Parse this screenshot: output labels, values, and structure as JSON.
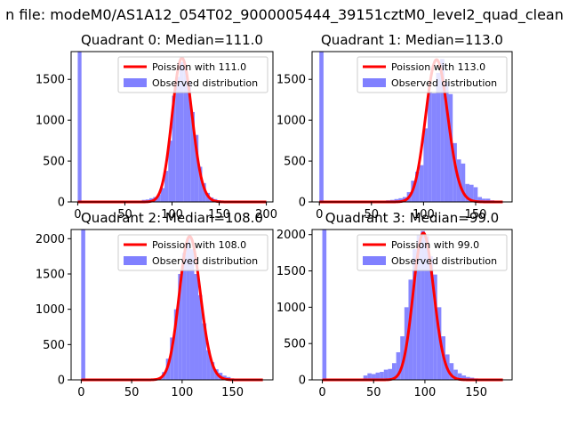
{
  "figure": {
    "suptitle": "n file: modeM0/AS1A12_054T02_9000005444_39151cztM0_level2_quad_clean"
  },
  "colors": {
    "histogram": "#8080ff",
    "poisson": "#ff0000"
  },
  "chart_data": [
    {
      "type": "bar",
      "title": "Quadrant 0: Median=111.0",
      "xlabel": "",
      "ylabel": "",
      "xlim": [
        -7,
        207
      ],
      "ylim": [
        0,
        1840
      ],
      "xticks": [
        0,
        50,
        100,
        150,
        200
      ],
      "yticks": [
        0,
        500,
        1000,
        1500
      ],
      "bin_width": 4,
      "bins_x": [
        0,
        4,
        8,
        12,
        16,
        20,
        24,
        28,
        32,
        36,
        40,
        44,
        48,
        52,
        56,
        60,
        64,
        68,
        72,
        76,
        80,
        84,
        88,
        92,
        96,
        100,
        104,
        108,
        112,
        116,
        120,
        124,
        128,
        132,
        136,
        140,
        144,
        148,
        152,
        156,
        160,
        164,
        168,
        172,
        176,
        180,
        184,
        188,
        192,
        196
      ],
      "bins_y": [
        1840,
        0,
        0,
        0,
        0,
        0,
        0,
        0,
        0,
        0,
        0,
        0,
        0,
        0,
        5,
        10,
        15,
        25,
        30,
        45,
        60,
        90,
        170,
        380,
        750,
        1300,
        1530,
        1710,
        1650,
        1480,
        1100,
        820,
        430,
        230,
        110,
        55,
        35,
        20,
        12,
        8,
        5,
        3,
        2,
        1,
        1,
        0,
        0,
        0,
        0,
        0
      ],
      "series": [
        {
          "name": "Observed distribution",
          "kind": "histogram"
        },
        {
          "name": "Poission with 111.0",
          "kind": "line",
          "mean": 111.0,
          "peak": 1760,
          "x_range": [
            0,
            200
          ]
        }
      ],
      "legend": {
        "position": "top-right",
        "entries": [
          "Poission with 111.0",
          "Observed distribution"
        ]
      }
    },
    {
      "type": "bar",
      "title": "Quadrant 1: Median=113.0",
      "xlabel": "",
      "ylabel": "",
      "xlim": [
        -7,
        185
      ],
      "ylim": [
        0,
        1840
      ],
      "xticks": [
        0,
        50,
        100,
        150
      ],
      "yticks": [
        0,
        500,
        1000,
        1500
      ],
      "bin_width": 4,
      "bins_x": [
        0,
        4,
        8,
        12,
        16,
        20,
        24,
        28,
        32,
        36,
        40,
        44,
        48,
        52,
        56,
        60,
        64,
        68,
        72,
        76,
        80,
        84,
        88,
        92,
        96,
        100,
        104,
        108,
        112,
        116,
        120,
        124,
        128,
        132,
        136,
        140,
        144,
        148,
        152,
        156,
        160,
        164,
        168,
        172,
        176
      ],
      "bins_y": [
        1840,
        0,
        0,
        0,
        0,
        0,
        0,
        0,
        0,
        0,
        0,
        0,
        0,
        0,
        0,
        0,
        20,
        25,
        35,
        45,
        60,
        120,
        260,
        370,
        450,
        900,
        1350,
        1330,
        1580,
        1750,
        1470,
        1320,
        720,
        520,
        470,
        220,
        210,
        180,
        60,
        40,
        40,
        20,
        10,
        5,
        3
      ],
      "series": [
        {
          "name": "Observed distribution",
          "kind": "histogram"
        },
        {
          "name": "Poission with 113.0",
          "kind": "line",
          "mean": 113.0,
          "peak": 1740,
          "x_range": [
            0,
            176
          ]
        }
      ],
      "legend": {
        "position": "top-right",
        "entries": [
          "Poission with 113.0",
          "Observed distribution"
        ]
      }
    },
    {
      "type": "bar",
      "title": "Quadrant 2: Median=108.0",
      "xlabel": "",
      "ylabel": "",
      "xlim": [
        -10,
        190
      ],
      "ylim": [
        0,
        2130
      ],
      "xticks": [
        0,
        50,
        100,
        150
      ],
      "yticks": [
        0,
        500,
        1000,
        1500,
        2000
      ],
      "bin_width": 4,
      "bins_x": [
        0,
        4,
        8,
        12,
        16,
        20,
        24,
        28,
        32,
        36,
        40,
        44,
        48,
        52,
        56,
        60,
        64,
        68,
        72,
        76,
        80,
        84,
        88,
        92,
        96,
        100,
        104,
        108,
        112,
        116,
        120,
        124,
        128,
        132,
        136,
        140,
        144,
        148,
        152,
        156,
        160,
        164,
        168,
        172,
        176,
        180
      ],
      "bins_y": [
        2130,
        0,
        0,
        0,
        0,
        0,
        0,
        0,
        0,
        0,
        0,
        0,
        0,
        0,
        0,
        0,
        5,
        10,
        15,
        30,
        110,
        300,
        600,
        1000,
        1500,
        1800,
        2000,
        1850,
        1500,
        1200,
        800,
        420,
        250,
        150,
        100,
        60,
        40,
        20,
        10,
        5,
        3,
        2,
        1,
        0,
        0,
        0
      ],
      "series": [
        {
          "name": "Observed distribution",
          "kind": "histogram"
        },
        {
          "name": "Poission with 108.0",
          "kind": "line",
          "mean": 108.0,
          "peak": 2030,
          "x_range": [
            0,
            180
          ]
        }
      ],
      "legend": {
        "position": "top-right",
        "entries": [
          "Poission with 108.0",
          "Observed distribution"
        ]
      }
    },
    {
      "type": "bar",
      "title": "Quadrant 3: Median=99.0",
      "xlabel": "",
      "ylabel": "",
      "xlim": [
        -10,
        185
      ],
      "ylim": [
        0,
        2070
      ],
      "xticks": [
        0,
        50,
        100,
        150
      ],
      "yticks": [
        0,
        500,
        1000,
        1500,
        2000
      ],
      "bin_width": 4,
      "bins_x": [
        0,
        4,
        8,
        12,
        16,
        20,
        24,
        28,
        32,
        36,
        40,
        44,
        48,
        52,
        56,
        60,
        64,
        68,
        72,
        76,
        80,
        84,
        88,
        92,
        96,
        100,
        104,
        108,
        112,
        116,
        120,
        124,
        128,
        132,
        136,
        140,
        144,
        148,
        152,
        156,
        160,
        164,
        168,
        172,
        176
      ],
      "bins_y": [
        2070,
        0,
        0,
        0,
        0,
        0,
        0,
        0,
        0,
        0,
        0,
        0,
        0,
        0,
        0,
        0,
        0,
        0,
        0,
        0,
        0,
        0,
        0,
        0,
        0,
        0,
        0,
        0,
        0,
        0,
        0,
        0,
        0,
        0,
        0,
        0,
        0,
        0,
        0,
        0,
        0,
        0,
        0,
        0,
        0
      ],
      "bins_override": {
        "x": [
          40,
          44,
          48,
          52,
          56,
          60,
          64,
          68,
          72,
          76,
          80,
          84,
          88,
          92,
          96,
          100,
          104,
          108,
          112,
          116,
          120,
          124,
          128,
          132,
          136,
          140,
          144,
          148,
          152,
          156,
          160,
          164,
          168,
          172
        ],
        "y": [
          60,
          90,
          80,
          100,
          110,
          140,
          150,
          230,
          380,
          600,
          1000,
          1380,
          1800,
          2000,
          2050,
          1980,
          1700,
          1450,
          1000,
          600,
          350,
          230,
          140,
          90,
          60,
          40,
          30,
          20,
          10,
          6,
          4,
          2,
          1,
          1
        ]
      },
      "series": [
        {
          "name": "Observed distribution",
          "kind": "histogram"
        },
        {
          "name": "Poission with 99.0",
          "kind": "line",
          "mean": 99.0,
          "peak": 2020,
          "x_range": [
            0,
            176
          ]
        }
      ],
      "legend": {
        "position": "top-right",
        "entries": [
          "Poission with 99.0",
          "Observed distribution"
        ]
      }
    }
  ]
}
